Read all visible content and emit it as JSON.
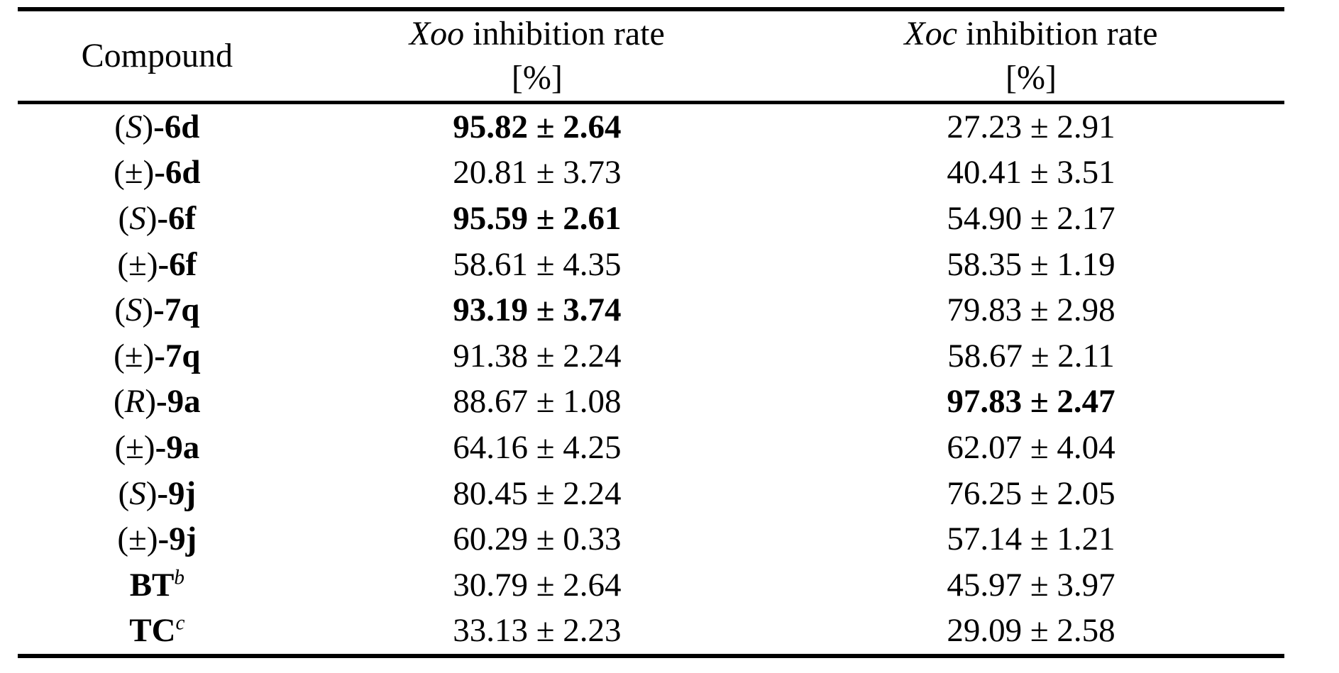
{
  "page": {
    "background_color": "#ffffff",
    "text_color": "#000000",
    "rule_color": "#000000"
  },
  "table": {
    "header": {
      "col1": "Compound",
      "col2": {
        "organism": "Xoo",
        "rest": " inhibition rate",
        "unit": "[%]"
      },
      "col3": {
        "organism": "Xoc",
        "rest": " inhibition rate",
        "unit": "[%]"
      }
    },
    "rows": [
      {
        "compound": [
          {
            "text": "(",
            "style": "plain"
          },
          {
            "text": "S",
            "style": "italic"
          },
          {
            "text": ")",
            "style": "plain"
          },
          {
            "text": "-6d",
            "style": "bold"
          }
        ],
        "xoo": {
          "value": "95.82 ± 2.64",
          "bold": true
        },
        "xoc": {
          "value": "27.23 ± 2.91",
          "bold": false
        }
      },
      {
        "compound": [
          {
            "text": "(±)",
            "style": "plain"
          },
          {
            "text": "-6d",
            "style": "bold"
          }
        ],
        "xoo": {
          "value": "20.81 ± 3.73",
          "bold": false
        },
        "xoc": {
          "value": "40.41 ± 3.51",
          "bold": false
        }
      },
      {
        "compound": [
          {
            "text": "(",
            "style": "plain"
          },
          {
            "text": "S",
            "style": "italic"
          },
          {
            "text": ")",
            "style": "plain"
          },
          {
            "text": "-6f",
            "style": "bold"
          }
        ],
        "xoo": {
          "value": "95.59 ± 2.61",
          "bold": true
        },
        "xoc": {
          "value": "54.90 ± 2.17",
          "bold": false
        }
      },
      {
        "compound": [
          {
            "text": "(±)",
            "style": "plain"
          },
          {
            "text": "-6f",
            "style": "bold"
          }
        ],
        "xoo": {
          "value": "58.61 ± 4.35",
          "bold": false
        },
        "xoc": {
          "value": "58.35 ± 1.19",
          "bold": false
        }
      },
      {
        "compound": [
          {
            "text": "(",
            "style": "plain"
          },
          {
            "text": "S",
            "style": "italic"
          },
          {
            "text": ")",
            "style": "plain"
          },
          {
            "text": "-7q",
            "style": "bold"
          }
        ],
        "xoo": {
          "value": "93.19 ± 3.74",
          "bold": true
        },
        "xoc": {
          "value": "79.83 ± 2.98",
          "bold": false
        }
      },
      {
        "compound": [
          {
            "text": "(±)",
            "style": "plain"
          },
          {
            "text": "-7q",
            "style": "bold"
          }
        ],
        "xoo": {
          "value": "91.38 ± 2.24",
          "bold": false
        },
        "xoc": {
          "value": "58.67 ± 2.11",
          "bold": false
        }
      },
      {
        "compound": [
          {
            "text": "(",
            "style": "plain"
          },
          {
            "text": "R",
            "style": "italic"
          },
          {
            "text": ")",
            "style": "plain"
          },
          {
            "text": "-9a",
            "style": "bold"
          }
        ],
        "xoo": {
          "value": "88.67 ± 1.08",
          "bold": false
        },
        "xoc": {
          "value": "97.83 ± 2.47",
          "bold": true
        }
      },
      {
        "compound": [
          {
            "text": "(±)",
            "style": "plain"
          },
          {
            "text": "-9a",
            "style": "bold"
          }
        ],
        "xoo": {
          "value": "64.16 ± 4.25",
          "bold": false
        },
        "xoc": {
          "value": "62.07 ± 4.04",
          "bold": false
        }
      },
      {
        "compound": [
          {
            "text": "(",
            "style": "plain"
          },
          {
            "text": "S",
            "style": "italic"
          },
          {
            "text": ")",
            "style": "plain"
          },
          {
            "text": "-9j",
            "style": "bold"
          }
        ],
        "xoo": {
          "value": "80.45 ± 2.24",
          "bold": false
        },
        "xoc": {
          "value": "76.25 ± 2.05",
          "bold": false
        }
      },
      {
        "compound": [
          {
            "text": "(±)",
            "style": "plain"
          },
          {
            "text": "-9j",
            "style": "bold"
          }
        ],
        "xoo": {
          "value": "60.29 ± 0.33",
          "bold": false
        },
        "xoc": {
          "value": "57.14 ± 1.21",
          "bold": false
        }
      },
      {
        "compound": [
          {
            "text": "BT",
            "style": "bold"
          },
          {
            "text": "b",
            "style": "sup"
          }
        ],
        "xoo": {
          "value": "30.79 ± 2.64",
          "bold": false
        },
        "xoc": {
          "value": "45.97 ± 3.97",
          "bold": false
        }
      },
      {
        "compound": [
          {
            "text": "TC",
            "style": "bold"
          },
          {
            "text": "c",
            "style": "sup"
          }
        ],
        "xoo": {
          "value": "33.13 ± 2.23",
          "bold": false
        },
        "xoc": {
          "value": "29.09 ± 2.58",
          "bold": false
        }
      }
    ]
  }
}
